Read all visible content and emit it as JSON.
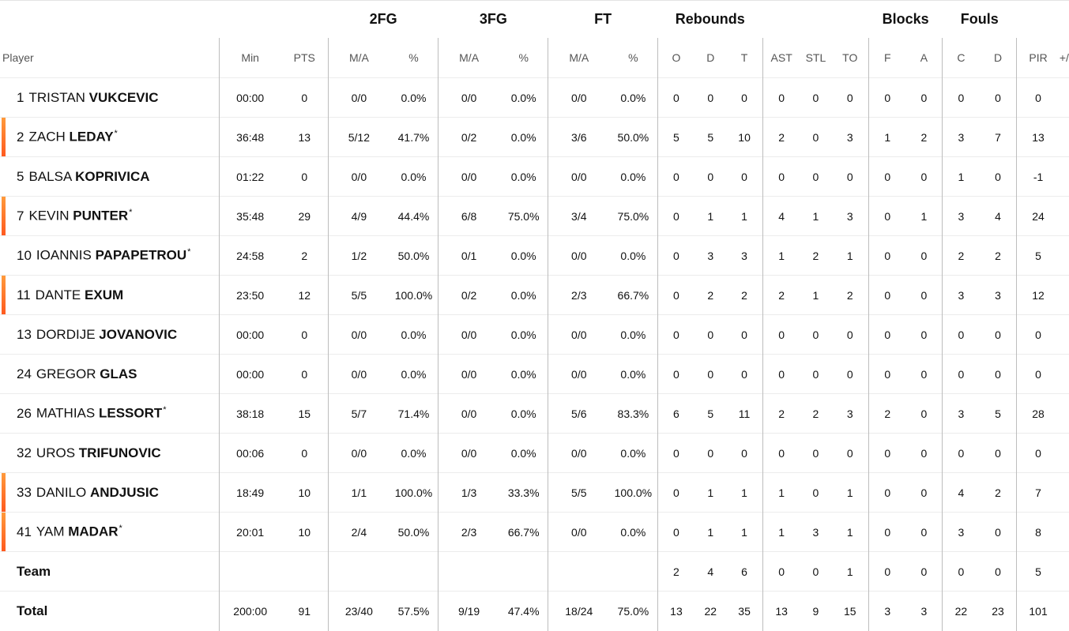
{
  "groups": {
    "two_fg": "2FG",
    "three_fg": "3FG",
    "ft": "FT",
    "rebounds": "Rebounds",
    "blocks": "Blocks",
    "fouls": "Fouls"
  },
  "headers": {
    "player": "Player",
    "min": "Min",
    "pts": "PTS",
    "two_ma": "M/A",
    "two_pct": "%",
    "three_ma": "M/A",
    "three_pct": "%",
    "ft_ma": "M/A",
    "ft_pct": "%",
    "reb_o": "O",
    "reb_d": "D",
    "reb_t": "T",
    "ast": "AST",
    "stl": "STL",
    "to": "TO",
    "blk_f": "F",
    "blk_a": "A",
    "foul_c": "C",
    "foul_d": "D",
    "pir": "PIR",
    "pm": "+/-"
  },
  "players": [
    {
      "number": "1",
      "first": "TRISTAN",
      "last": "VUKCEVIC",
      "star": "",
      "starter": false,
      "min": "00:00",
      "pts": "0",
      "two_ma": "0/0",
      "two_pct": "0.0%",
      "three_ma": "0/0",
      "three_pct": "0.0%",
      "ft_ma": "0/0",
      "ft_pct": "0.0%",
      "reb_o": "0",
      "reb_d": "0",
      "reb_t": "0",
      "ast": "0",
      "stl": "0",
      "to": "0",
      "blk_f": "0",
      "blk_a": "0",
      "foul_c": "0",
      "foul_d": "0",
      "pir": "0"
    },
    {
      "number": "2",
      "first": "ZACH",
      "last": "LEDAY",
      "star": "*",
      "starter": true,
      "min": "36:48",
      "pts": "13",
      "two_ma": "5/12",
      "two_pct": "41.7%",
      "three_ma": "0/2",
      "three_pct": "0.0%",
      "ft_ma": "3/6",
      "ft_pct": "50.0%",
      "reb_o": "5",
      "reb_d": "5",
      "reb_t": "10",
      "ast": "2",
      "stl": "0",
      "to": "3",
      "blk_f": "1",
      "blk_a": "2",
      "foul_c": "3",
      "foul_d": "7",
      "pir": "13"
    },
    {
      "number": "5",
      "first": "BALSA",
      "last": "KOPRIVICA",
      "star": "",
      "starter": false,
      "min": "01:22",
      "pts": "0",
      "two_ma": "0/0",
      "two_pct": "0.0%",
      "three_ma": "0/0",
      "three_pct": "0.0%",
      "ft_ma": "0/0",
      "ft_pct": "0.0%",
      "reb_o": "0",
      "reb_d": "0",
      "reb_t": "0",
      "ast": "0",
      "stl": "0",
      "to": "0",
      "blk_f": "0",
      "blk_a": "0",
      "foul_c": "1",
      "foul_d": "0",
      "pir": "-1"
    },
    {
      "number": "7",
      "first": "KEVIN",
      "last": "PUNTER",
      "star": "*",
      "starter": true,
      "min": "35:48",
      "pts": "29",
      "two_ma": "4/9",
      "two_pct": "44.4%",
      "three_ma": "6/8",
      "three_pct": "75.0%",
      "ft_ma": "3/4",
      "ft_pct": "75.0%",
      "reb_o": "0",
      "reb_d": "1",
      "reb_t": "1",
      "ast": "4",
      "stl": "1",
      "to": "3",
      "blk_f": "0",
      "blk_a": "1",
      "foul_c": "3",
      "foul_d": "4",
      "pir": "24"
    },
    {
      "number": "10",
      "first": "IOANNIS",
      "last": "PAPAPETROU",
      "star": "*",
      "starter": false,
      "min": "24:58",
      "pts": "2",
      "two_ma": "1/2",
      "two_pct": "50.0%",
      "three_ma": "0/1",
      "three_pct": "0.0%",
      "ft_ma": "0/0",
      "ft_pct": "0.0%",
      "reb_o": "0",
      "reb_d": "3",
      "reb_t": "3",
      "ast": "1",
      "stl": "2",
      "to": "1",
      "blk_f": "0",
      "blk_a": "0",
      "foul_c": "2",
      "foul_d": "2",
      "pir": "5"
    },
    {
      "number": "11",
      "first": "DANTE",
      "last": "EXUM",
      "star": "",
      "starter": true,
      "min": "23:50",
      "pts": "12",
      "two_ma": "5/5",
      "two_pct": "100.0%",
      "three_ma": "0/2",
      "three_pct": "0.0%",
      "ft_ma": "2/3",
      "ft_pct": "66.7%",
      "reb_o": "0",
      "reb_d": "2",
      "reb_t": "2",
      "ast": "2",
      "stl": "1",
      "to": "2",
      "blk_f": "0",
      "blk_a": "0",
      "foul_c": "3",
      "foul_d": "3",
      "pir": "12"
    },
    {
      "number": "13",
      "first": "DORDIJE",
      "last": "JOVANOVIC",
      "star": "",
      "starter": false,
      "min": "00:00",
      "pts": "0",
      "two_ma": "0/0",
      "two_pct": "0.0%",
      "three_ma": "0/0",
      "three_pct": "0.0%",
      "ft_ma": "0/0",
      "ft_pct": "0.0%",
      "reb_o": "0",
      "reb_d": "0",
      "reb_t": "0",
      "ast": "0",
      "stl": "0",
      "to": "0",
      "blk_f": "0",
      "blk_a": "0",
      "foul_c": "0",
      "foul_d": "0",
      "pir": "0"
    },
    {
      "number": "24",
      "first": "GREGOR",
      "last": "GLAS",
      "star": "",
      "starter": false,
      "min": "00:00",
      "pts": "0",
      "two_ma": "0/0",
      "two_pct": "0.0%",
      "three_ma": "0/0",
      "three_pct": "0.0%",
      "ft_ma": "0/0",
      "ft_pct": "0.0%",
      "reb_o": "0",
      "reb_d": "0",
      "reb_t": "0",
      "ast": "0",
      "stl": "0",
      "to": "0",
      "blk_f": "0",
      "blk_a": "0",
      "foul_c": "0",
      "foul_d": "0",
      "pir": "0"
    },
    {
      "number": "26",
      "first": "MATHIAS",
      "last": "LESSORT",
      "star": "*",
      "starter": false,
      "min": "38:18",
      "pts": "15",
      "two_ma": "5/7",
      "two_pct": "71.4%",
      "three_ma": "0/0",
      "three_pct": "0.0%",
      "ft_ma": "5/6",
      "ft_pct": "83.3%",
      "reb_o": "6",
      "reb_d": "5",
      "reb_t": "11",
      "ast": "2",
      "stl": "2",
      "to": "3",
      "blk_f": "2",
      "blk_a": "0",
      "foul_c": "3",
      "foul_d": "5",
      "pir": "28"
    },
    {
      "number": "32",
      "first": "UROS",
      "last": "TRIFUNOVIC",
      "star": "",
      "starter": false,
      "min": "00:06",
      "pts": "0",
      "two_ma": "0/0",
      "two_pct": "0.0%",
      "three_ma": "0/0",
      "three_pct": "0.0%",
      "ft_ma": "0/0",
      "ft_pct": "0.0%",
      "reb_o": "0",
      "reb_d": "0",
      "reb_t": "0",
      "ast": "0",
      "stl": "0",
      "to": "0",
      "blk_f": "0",
      "blk_a": "0",
      "foul_c": "0",
      "foul_d": "0",
      "pir": "0"
    },
    {
      "number": "33",
      "first": "DANILO",
      "last": "ANDJUSIC",
      "star": "",
      "starter": true,
      "min": "18:49",
      "pts": "10",
      "two_ma": "1/1",
      "two_pct": "100.0%",
      "three_ma": "1/3",
      "three_pct": "33.3%",
      "ft_ma": "5/5",
      "ft_pct": "100.0%",
      "reb_o": "0",
      "reb_d": "1",
      "reb_t": "1",
      "ast": "1",
      "stl": "0",
      "to": "1",
      "blk_f": "0",
      "blk_a": "0",
      "foul_c": "4",
      "foul_d": "2",
      "pir": "7"
    },
    {
      "number": "41",
      "first": "YAM",
      "last": "MADAR",
      "star": "*",
      "starter": true,
      "min": "20:01",
      "pts": "10",
      "two_ma": "2/4",
      "two_pct": "50.0%",
      "three_ma": "2/3",
      "three_pct": "66.7%",
      "ft_ma": "0/0",
      "ft_pct": "0.0%",
      "reb_o": "0",
      "reb_d": "1",
      "reb_t": "1",
      "ast": "1",
      "stl": "3",
      "to": "1",
      "blk_f": "0",
      "blk_a": "0",
      "foul_c": "3",
      "foul_d": "0",
      "pir": "8"
    }
  ],
  "team": {
    "label": "Team",
    "min": "",
    "pts": "",
    "two_ma": "",
    "two_pct": "",
    "three_ma": "",
    "three_pct": "",
    "ft_ma": "",
    "ft_pct": "",
    "reb_o": "2",
    "reb_d": "4",
    "reb_t": "6",
    "ast": "0",
    "stl": "0",
    "to": "1",
    "blk_f": "0",
    "blk_a": "0",
    "foul_c": "0",
    "foul_d": "0",
    "pir": "5"
  },
  "total": {
    "label": "Total",
    "min": "200:00",
    "pts": "91",
    "two_ma": "23/40",
    "two_pct": "57.5%",
    "three_ma": "9/19",
    "three_pct": "47.4%",
    "ft_ma": "18/24",
    "ft_pct": "75.0%",
    "reb_o": "13",
    "reb_d": "22",
    "reb_t": "35",
    "ast": "13",
    "stl": "9",
    "to": "15",
    "blk_f": "3",
    "blk_a": "3",
    "foul_c": "22",
    "foul_d": "23",
    "pir": "101"
  },
  "colors": {
    "starter_bar_top": "#ff9a3c",
    "starter_bar_bottom": "#ff5a1f",
    "separator": "#bdbdbd"
  }
}
